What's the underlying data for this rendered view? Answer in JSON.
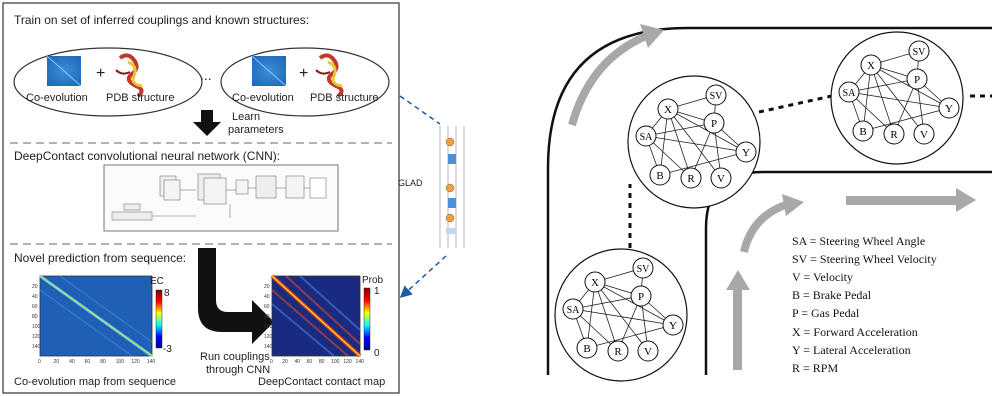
{
  "left_panel": {
    "section1": {
      "title": "Train on set of inferred couplings and known structures:",
      "example1": {
        "coev_label": "Co-evolution",
        "plus": "+",
        "pdb_label": "PDB structure"
      },
      "ellipsis": "...",
      "example2": {
        "coev_label": "Co-evolution",
        "plus": "+",
        "pdb_label": "PDB structure"
      },
      "arrow_label_line1": "Learn",
      "arrow_label_line2": "parameters"
    },
    "section2": {
      "title": "DeepContact convolutional neural network (CNN):"
    },
    "section3": {
      "title": "Novel prediction from sequence:",
      "heatmap1": {
        "caption": "Co-evolution map from sequence",
        "colorbar_title": "EC",
        "colorbar_max": "8",
        "colorbar_min": "-3",
        "y_ticks": [
          "20",
          "40",
          "60",
          "80",
          "100",
          "120",
          "140"
        ],
        "x_ticks": [
          "0",
          "20",
          "40",
          "60",
          "80",
          "100",
          "120",
          "140"
        ]
      },
      "arrow_label_line1": "Run couplings",
      "arrow_label_line2": "through CNN",
      "heatmap2": {
        "caption": "DeepContact contact map",
        "colorbar_title": "Prob",
        "colorbar_max": "1",
        "colorbar_min": "0",
        "y_ticks": [
          "20",
          "40",
          "60",
          "80",
          "100",
          "120",
          "140"
        ],
        "x_ticks": [
          "0",
          "20",
          "40",
          "60",
          "80",
          "100",
          "120",
          "140"
        ]
      }
    }
  },
  "glad": {
    "label": "GLAD"
  },
  "right_panel": {
    "graphs": [
      {
        "nodes": [
          "X",
          "SV",
          "P",
          "SA",
          "Y",
          "B",
          "R",
          "V"
        ]
      },
      {
        "nodes": [
          "X",
          "SV",
          "P",
          "SA",
          "Y",
          "B",
          "R",
          "V"
        ]
      },
      {
        "nodes": [
          "X",
          "SV",
          "P",
          "SA",
          "Y",
          "B",
          "R",
          "V"
        ]
      }
    ],
    "legend": [
      "SA = Steering Wheel Angle",
      "SV = Steering Wheel Velocity",
      "V = Velocity",
      "B = Brake Pedal",
      "P = Gas Pedal",
      "X = Forward Acceleration",
      "Y = Lateral Acceleration",
      "R = RPM"
    ]
  },
  "colors": {
    "road_arrow": "#a8a8a8",
    "dashed_link": "#1a5aa8",
    "network_arrow": "#111111"
  }
}
